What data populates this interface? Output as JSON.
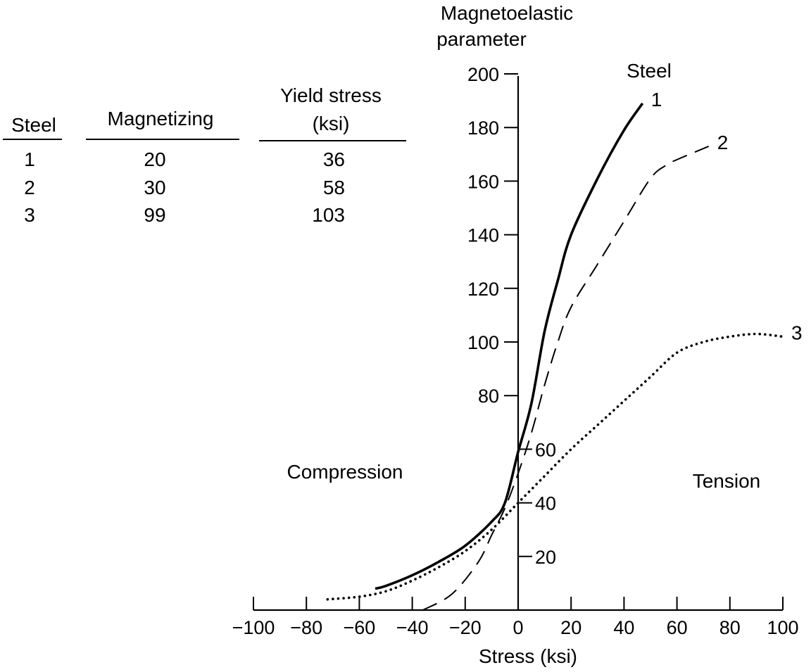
{
  "table": {
    "headers": {
      "steel": "Steel",
      "magnetizing": "Magnetizing",
      "yield_line1": "Yield stress",
      "yield_line2": "(ksi)"
    },
    "rows": [
      {
        "steel": "1",
        "magnetizing": "20",
        "yield": "36"
      },
      {
        "steel": "2",
        "magnetizing": "30",
        "yield": "58"
      },
      {
        "steel": "3",
        "magnetizing": "99",
        "yield": "103"
      }
    ]
  },
  "chart_data": {
    "type": "line",
    "ylabel_line1": "Magnetoelastic",
    "ylabel_line2": "parameter",
    "xlabel": "Stress (ksi)",
    "xlim": [
      -100,
      100
    ],
    "ylim": [
      0,
      200
    ],
    "xticks": [
      -100,
      -80,
      -60,
      -40,
      -20,
      0,
      20,
      40,
      60,
      80,
      100
    ],
    "xtick_labels": [
      "−100",
      "−80",
      "−60",
      "−40",
      "−20",
      "0",
      "20",
      "40",
      "60",
      "80",
      "100"
    ],
    "yticks": [
      20,
      40,
      60,
      80,
      100,
      120,
      140,
      160,
      180,
      200
    ],
    "ytick_labels": [
      "20",
      "40",
      "60",
      "80",
      "100",
      "120",
      "140",
      "160",
      "180",
      "200"
    ],
    "legend_title": "Steel",
    "annotations": {
      "compression": "Compression",
      "tension": "Tension"
    },
    "series": [
      {
        "name": "1",
        "style": "solid",
        "points": [
          [
            -54,
            8
          ],
          [
            -50,
            9
          ],
          [
            -40,
            13
          ],
          [
            -30,
            18
          ],
          [
            -20,
            24
          ],
          [
            -10,
            33
          ],
          [
            -5,
            40
          ],
          [
            0,
            59
          ],
          [
            5,
            77
          ],
          [
            10,
            104
          ],
          [
            15,
            123
          ],
          [
            20,
            140
          ],
          [
            30,
            161
          ],
          [
            40,
            179
          ],
          [
            47,
            189
          ]
        ]
      },
      {
        "name": "2",
        "style": "dashed",
        "points": [
          [
            -36,
            0
          ],
          [
            -25,
            6
          ],
          [
            -15,
            18
          ],
          [
            -10,
            28
          ],
          [
            -5,
            38
          ],
          [
            0,
            51
          ],
          [
            5,
            66
          ],
          [
            10,
            84
          ],
          [
            15,
            100
          ],
          [
            20,
            113
          ],
          [
            30,
            129
          ],
          [
            40,
            145
          ],
          [
            50,
            161
          ],
          [
            56,
            166
          ],
          [
            60,
            168
          ],
          [
            72,
            173
          ]
        ]
      },
      {
        "name": "3",
        "style": "dotted",
        "points": [
          [
            -72,
            4
          ],
          [
            -60,
            5
          ],
          [
            -50,
            7
          ],
          [
            -40,
            11
          ],
          [
            -30,
            16
          ],
          [
            -20,
            22
          ],
          [
            -10,
            30
          ],
          [
            0,
            40
          ],
          [
            10,
            50
          ],
          [
            20,
            60
          ],
          [
            30,
            69
          ],
          [
            40,
            78
          ],
          [
            50,
            87
          ],
          [
            60,
            96
          ],
          [
            70,
            100
          ],
          [
            80,
            102
          ],
          [
            90,
            103
          ],
          [
            100,
            102
          ]
        ]
      }
    ]
  }
}
